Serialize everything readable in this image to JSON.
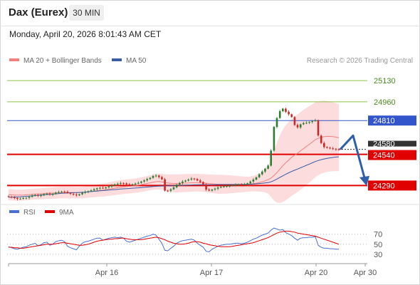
{
  "header": {
    "title": "Dax (Eurex)",
    "timeframe": "30 MIN",
    "datetime": "Monday, April 20, 2026 8:01:43 AM CET"
  },
  "legend": {
    "ma20": "MA 20 + Bollinger Bands",
    "ma50": "MA 50",
    "credit": "Research © 2026 Trading Central"
  },
  "rsi_legend": {
    "rsi": "RSI",
    "ma9": "9MA"
  },
  "colors": {
    "ma20": "#f08080",
    "ma50": "#3b5ba5",
    "bollinger": "#fbd0d0",
    "up_candle": "#2e7d32",
    "down_candle": "#c62828",
    "resistance": "#8bc34a",
    "pivot": "#3355cc",
    "support": "#e00000",
    "current": "#333333",
    "rsi": "#4a6fd0",
    "rsi_ma": "#e00000"
  },
  "chart_data": [
    {
      "type": "candlestick",
      "title": "Dax (Eurex) 30 MIN",
      "xlabel": "",
      "ylabel": "",
      "ylim": [
        24150,
        25250
      ],
      "x_ticks": [
        "Apr 16",
        "Apr 17",
        "Apr 20",
        "Apr 30"
      ],
      "levels": [
        {
          "label": "25130",
          "value": 25130,
          "kind": "resistance"
        },
        {
          "label": "24960",
          "value": 24960,
          "kind": "resistance"
        },
        {
          "label": "24810",
          "value": 24810,
          "kind": "pivot"
        },
        {
          "label": "24580",
          "value": 24580,
          "kind": "current"
        },
        {
          "label": "24540",
          "value": 24540,
          "kind": "support"
        },
        {
          "label": "24290",
          "value": 24290,
          "kind": "support"
        }
      ],
      "forecast": {
        "from": 24580,
        "up_to": 24690,
        "down_to": 24310,
        "direction": "down"
      },
      "close": [
        24200,
        24195,
        24190,
        24183,
        24185,
        24190,
        24192,
        24200,
        24210,
        24215,
        24208,
        24212,
        24222,
        24225,
        24218,
        24222,
        24232,
        24238,
        24242,
        24240,
        24230,
        24224,
        24218,
        24212,
        24220,
        24232,
        24240,
        24245,
        24252,
        24260,
        24268,
        24272,
        24268,
        24275,
        24282,
        24290,
        24300,
        24305,
        24310,
        24308,
        24300,
        24296,
        24300,
        24306,
        24312,
        24322,
        24332,
        24342,
        24352,
        24366,
        24370,
        24358,
        24340,
        24250,
        24248,
        24260,
        24275,
        24298,
        24310,
        24322,
        24330,
        24338,
        24346,
        24342,
        24330,
        24318,
        24300,
        24258,
        24250,
        24258,
        24265,
        24274,
        24280,
        24284,
        24286,
        24288,
        24292,
        24296,
        24300,
        24298,
        24300,
        24308,
        24322,
        24338,
        24356,
        24380,
        24402,
        24425,
        24450,
        24570,
        24760,
        24830,
        24885,
        24905,
        24880,
        24860,
        24838,
        24775,
        24755,
        24780,
        24790,
        24792,
        24798,
        24805,
        24812,
        24690,
        24630,
        24598,
        24592,
        24588,
        24584,
        24580,
        24576
      ],
      "ma20": [
        24218,
        24216,
        24214,
        24213,
        24213,
        24214,
        24216,
        24218,
        24220,
        24222,
        24223,
        24224,
        24226,
        24228,
        24229,
        24230,
        24232,
        24233,
        24234,
        24235,
        24234,
        24234,
        24234,
        24233,
        24234,
        24235,
        24237,
        24240,
        24243,
        24246,
        24249,
        24252,
        24254,
        24257,
        24261,
        24265,
        24269,
        24273,
        24277,
        24280,
        24282,
        24284,
        24286,
        24289,
        24293,
        24297,
        24302,
        24307,
        24312,
        24317,
        24321,
        24322,
        24320,
        24315,
        24311,
        24308,
        24307,
        24307,
        24308,
        24309,
        24310,
        24311,
        24312,
        24313,
        24313,
        24312,
        24311,
        24309,
        24306,
        24304,
        24302,
        24300,
        24300,
        24300,
        24300,
        24300,
        24300,
        24300,
        24300,
        24300,
        24300,
        24301,
        24303,
        24306,
        24309,
        24314,
        24320,
        24328,
        24337,
        24350,
        24370,
        24394,
        24420,
        24448,
        24472,
        24495,
        24516,
        24533,
        24549,
        24567,
        24585,
        24603,
        24620,
        24638,
        24657,
        24668,
        24676,
        24681,
        24683,
        24683,
        24681,
        24678,
        24672
      ],
      "bb_width": [
        45,
        45,
        44,
        44,
        44,
        44,
        44,
        44,
        44,
        44,
        44,
        44,
        45,
        45,
        45,
        46,
        46,
        46,
        47,
        47,
        47,
        47,
        46,
        46,
        46,
        46,
        47,
        47,
        48,
        49,
        50,
        51,
        52,
        53,
        54,
        55,
        56,
        56,
        57,
        57,
        57,
        57,
        57,
        57,
        58,
        58,
        59,
        59,
        60,
        61,
        62,
        63,
        64,
        66,
        68,
        70,
        71,
        72,
        72,
        72,
        72,
        71,
        71,
        70,
        70,
        70,
        71,
        72,
        73,
        74,
        75,
        76,
        76,
        75,
        74,
        72,
        70,
        68,
        66,
        64,
        62,
        60,
        60,
        62,
        66,
        72,
        80,
        92,
        110,
        150,
        200,
        240,
        270,
        290,
        300,
        305,
        308,
        310,
        310,
        310,
        310,
        308,
        306,
        303,
        300,
        296,
        292,
        288,
        284,
        280,
        276,
        272,
        268
      ],
      "ma50": [
        24196,
        24197,
        24198,
        24199,
        24200,
        24202,
        24204,
        24206,
        24208,
        24210,
        24212,
        24214,
        24216,
        24218,
        24220,
        24222,
        24224,
        24226,
        24228,
        24229,
        24231,
        24232,
        24233,
        24234,
        24235,
        24236,
        24238,
        24240,
        24242,
        24244,
        24246,
        24248,
        24250,
        24252,
        24254,
        24256,
        24258,
        24260,
        24262,
        24264,
        24265,
        24267,
        24269,
        24270,
        24272,
        24274,
        24276,
        24278,
        24280,
        24282,
        24284,
        24285,
        24286,
        24287,
        24288,
        24288,
        24289,
        24290,
        24291,
        24292,
        24293,
        24294,
        24295,
        24296,
        24296,
        24297,
        24297,
        24297,
        24297,
        24297,
        24297,
        24298,
        24298,
        24298,
        24298,
        24298,
        24298,
        24298,
        24298,
        24299,
        24299,
        24300,
        24301,
        24302,
        24304,
        24306,
        24308,
        24311,
        24314,
        24320,
        24330,
        24342,
        24355,
        24368,
        24380,
        24392,
        24403,
        24413,
        24422,
        24432,
        24442,
        24452,
        24462,
        24472,
        24482,
        24490,
        24497,
        24503,
        24508,
        24512,
        24515,
        24518,
        24520
      ]
    },
    {
      "type": "line",
      "title": "RSI",
      "xlabel": "",
      "ylabel": "",
      "ylim": [
        20,
        85
      ],
      "y_ticks": [
        70,
        50,
        30
      ],
      "series": [
        {
          "name": "RSI",
          "values": [
            45,
            43,
            41,
            40,
            42,
            44,
            45,
            48,
            50,
            52,
            47,
            49,
            53,
            54,
            48,
            50,
            55,
            57,
            58,
            55,
            46,
            43,
            41,
            39,
            46,
            52,
            55,
            56,
            58,
            60,
            62,
            62,
            58,
            60,
            62,
            63,
            64,
            63,
            64,
            62,
            56,
            54,
            56,
            58,
            60,
            62,
            64,
            66,
            67,
            70,
            68,
            60,
            52,
            38,
            37,
            42,
            46,
            52,
            55,
            57,
            58,
            59,
            60,
            58,
            52,
            48,
            44,
            36,
            35,
            40,
            43,
            46,
            48,
            49,
            50,
            50,
            51,
            52,
            52,
            51,
            52,
            54,
            57,
            60,
            62,
            65,
            68,
            70,
            72,
            78,
            82,
            80,
            78,
            79,
            73,
            70,
            67,
            62,
            58,
            62,
            63,
            63,
            64,
            64,
            65,
            48,
            44,
            42,
            42,
            41,
            41,
            40,
            40
          ]
        },
        {
          "name": "9MA",
          "values": [
            44,
            44,
            43,
            43,
            42,
            42,
            43,
            44,
            45,
            46,
            47,
            48,
            49,
            50,
            50,
            50,
            51,
            52,
            53,
            53,
            52,
            51,
            50,
            49,
            48,
            48,
            49,
            50,
            52,
            54,
            56,
            57,
            58,
            59,
            60,
            60,
            61,
            61,
            62,
            62,
            61,
            60,
            59,
            59,
            59,
            59,
            60,
            61,
            62,
            63,
            64,
            63,
            61,
            59,
            56,
            54,
            52,
            51,
            50,
            50,
            51,
            52,
            54,
            55,
            55,
            54,
            52,
            51,
            49,
            48,
            47,
            46,
            45,
            45,
            45,
            45,
            46,
            47,
            48,
            49,
            50,
            51,
            52,
            53,
            55,
            57,
            59,
            61,
            63,
            66,
            69,
            72,
            74,
            75,
            76,
            76,
            75,
            74,
            72,
            71,
            70,
            69,
            68,
            67,
            66,
            64,
            62,
            60,
            58,
            56,
            54,
            52,
            50
          ]
        }
      ]
    }
  ]
}
